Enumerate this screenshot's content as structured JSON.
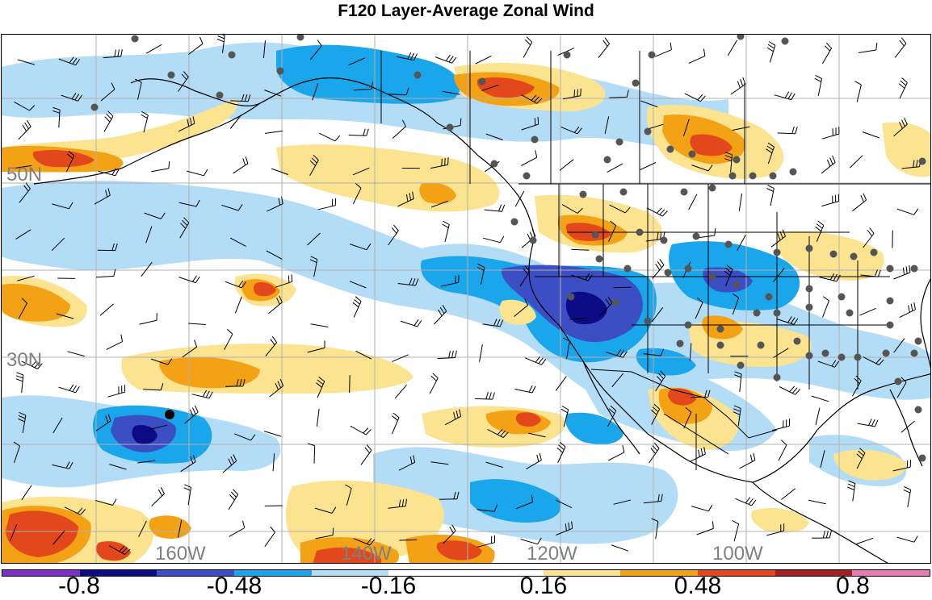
{
  "title": "F120 Layer-Average Zonal Wind",
  "lat_labels": [
    "50N",
    "30N"
  ],
  "lon_labels": [
    "160W",
    "140W",
    "120W",
    "100W"
  ],
  "colorbar": {
    "colors": [
      "#7d2fc6",
      "#0b0b86",
      "#3b4ec3",
      "#1aa6ea",
      "#b3dcf6",
      "#ffffff",
      "#ffffff",
      "#fbe38f",
      "#f3a115",
      "#e3481c",
      "#a51e22",
      "#e87bb3"
    ],
    "labels": [
      "-0.8",
      "-0.48",
      "-0.16",
      "0.16",
      "0.48",
      "0.8"
    ]
  },
  "colors": {
    "light_blue": "#b3dcf6",
    "mid_blue": "#1aa6ea",
    "blue": "#3b4ec3",
    "navy": "#0b0b86",
    "light_yellow": "#fbe38f",
    "orange": "#f3a115",
    "red": "#e3481c",
    "station": "#555555",
    "grid": "#b0b0b0"
  }
}
